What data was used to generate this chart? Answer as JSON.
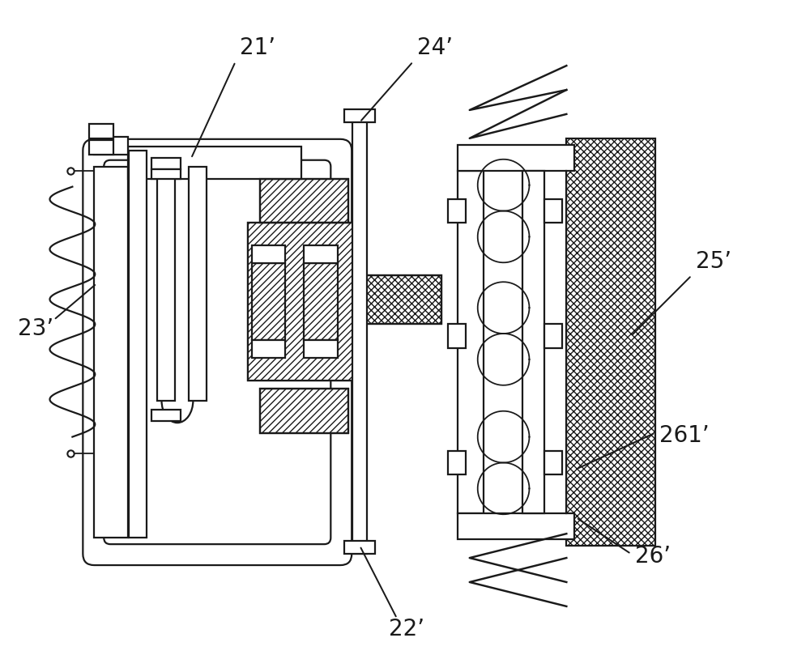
{
  "background_color": "#ffffff",
  "line_color": "#1a1a1a",
  "labels": {
    "21p": "21’",
    "22p": "22’",
    "23p": "23’",
    "24p": "24’",
    "25p": "25’",
    "26p": "26’",
    "261p": "261’"
  },
  "line_width": 1.6,
  "figsize": [
    10.0,
    8.3
  ],
  "dpi": 100
}
